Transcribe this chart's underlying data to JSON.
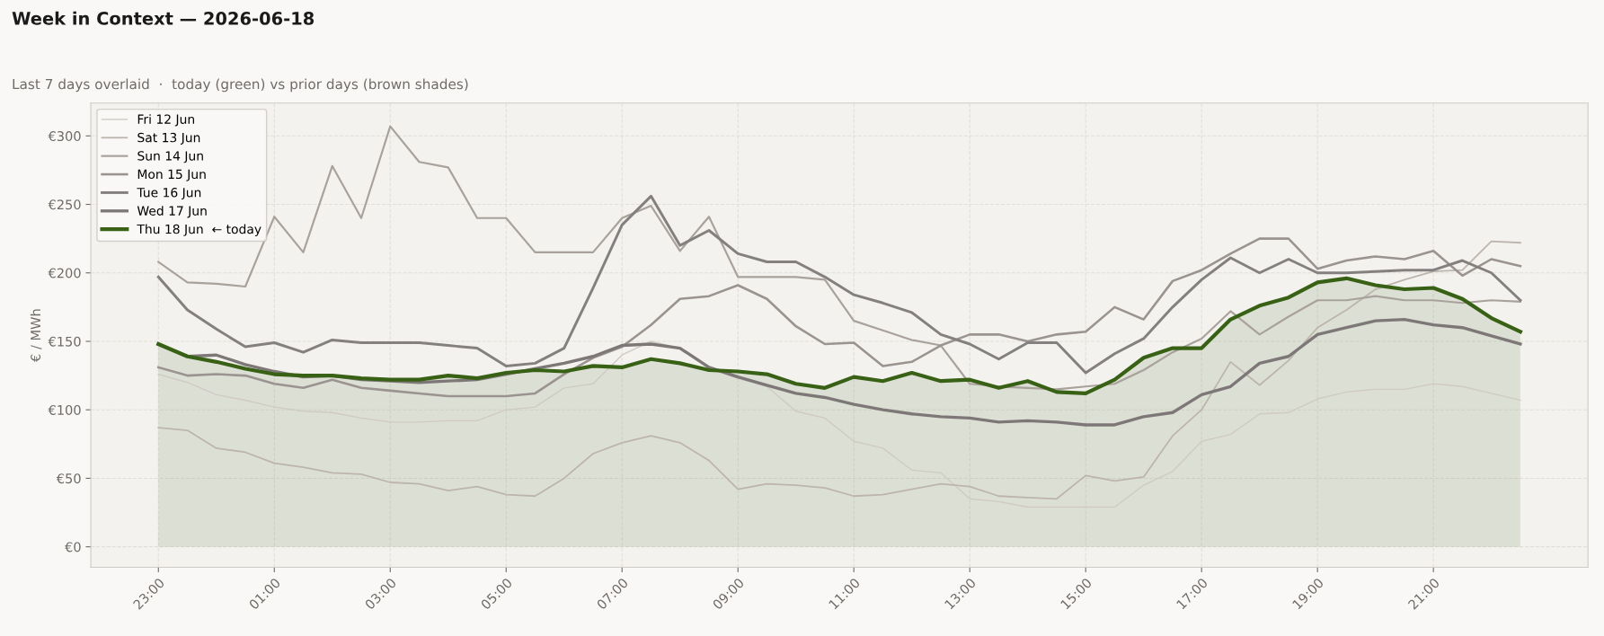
{
  "chart_data": {
    "type": "line",
    "title": "Week in Context — 2026-06-18",
    "subtitle": "Last 7 days overlaid  ·  today (green) vs prior days (brown shades)",
    "ylabel": "€ / MWh",
    "x": [
      "2026-06-17T23:00",
      "2026-06-17T23:30",
      "2026-06-18T00:00",
      "2026-06-18T00:30",
      "2026-06-18T01:00",
      "2026-06-18T01:30",
      "2026-06-18T02:00",
      "2026-06-18T02:30",
      "2026-06-18T03:00",
      "2026-06-18T03:30",
      "2026-06-18T04:00",
      "2026-06-18T04:30",
      "2026-06-18T05:00",
      "2026-06-18T05:30",
      "2026-06-18T06:00",
      "2026-06-18T06:30",
      "2026-06-18T07:00",
      "2026-06-18T07:30",
      "2026-06-18T08:00",
      "2026-06-18T08:30",
      "2026-06-18T09:00",
      "2026-06-18T09:30",
      "2026-06-18T10:00",
      "2026-06-18T10:30",
      "2026-06-18T11:00",
      "2026-06-18T11:30",
      "2026-06-18T12:00",
      "2026-06-18T12:30",
      "2026-06-18T13:00",
      "2026-06-18T13:30",
      "2026-06-18T14:00",
      "2026-06-18T14:30",
      "2026-06-18T15:00",
      "2026-06-18T15:30",
      "2026-06-18T16:00",
      "2026-06-18T16:30",
      "2026-06-18T17:00",
      "2026-06-18T17:30",
      "2026-06-18T18:00",
      "2026-06-18T18:30",
      "2026-06-18T19:00",
      "2026-06-18T19:30",
      "2026-06-18T20:00",
      "2026-06-18T20:30",
      "2026-06-18T21:00",
      "2026-06-18T21:30",
      "2026-06-18T22:00",
      "2026-06-18T22:30"
    ],
    "xlim": [
      "2026-06-17T21:50",
      "2026-06-18T23:40"
    ],
    "ylim": [
      -15,
      324
    ],
    "xticks": [
      {
        "value": "2026-06-17T23:00",
        "label": "23:00"
      },
      {
        "value": "2026-06-18T01:00",
        "label": "01:00"
      },
      {
        "value": "2026-06-18T03:00",
        "label": "03:00"
      },
      {
        "value": "2026-06-18T05:00",
        "label": "05:00"
      },
      {
        "value": "2026-06-18T07:00",
        "label": "07:00"
      },
      {
        "value": "2026-06-18T09:00",
        "label": "09:00"
      },
      {
        "value": "2026-06-18T11:00",
        "label": "11:00"
      },
      {
        "value": "2026-06-18T13:00",
        "label": "13:00"
      },
      {
        "value": "2026-06-18T15:00",
        "label": "15:00"
      },
      {
        "value": "2026-06-18T17:00",
        "label": "17:00"
      },
      {
        "value": "2026-06-18T19:00",
        "label": "19:00"
      },
      {
        "value": "2026-06-18T21:00",
        "label": "21:00"
      }
    ],
    "yticks": [
      {
        "value": 0,
        "label": "€0"
      },
      {
        "value": 50,
        "label": "€50"
      },
      {
        "value": 100,
        "label": "€100"
      },
      {
        "value": 150,
        "label": "€150"
      },
      {
        "value": 200,
        "label": "€200"
      },
      {
        "value": 250,
        "label": "€250"
      },
      {
        "value": 300,
        "label": "€300"
      }
    ],
    "grid": true,
    "legend": "top left",
    "series": [
      {
        "name": "Fri 12 Jun",
        "color": "#cfcac4",
        "values": [
          126,
          120,
          111,
          107,
          102,
          99,
          98,
          94,
          91,
          91,
          92,
          92,
          100,
          102,
          116,
          119,
          140,
          150,
          145,
          130,
          123,
          117,
          99,
          94,
          77,
          72,
          56,
          54,
          35,
          33,
          29,
          29,
          29,
          29,
          45,
          55,
          77,
          82,
          97,
          98,
          108,
          113,
          115,
          115,
          119,
          117,
          112,
          107
        ]
      },
      {
        "name": "Sat 13 Jun",
        "color": "#bdb5ad",
        "values": [
          87,
          85,
          72,
          69,
          61,
          58,
          54,
          53,
          47,
          46,
          41,
          44,
          38,
          37,
          50,
          68,
          76,
          81,
          76,
          63,
          42,
          46,
          45,
          43,
          37,
          38,
          42,
          46,
          44,
          37,
          36,
          35,
          52,
          48,
          51,
          81,
          100,
          135,
          118,
          136,
          160,
          173,
          188,
          195,
          201,
          202,
          223,
          222
        ]
      },
      {
        "name": "Sun 14 Jun",
        "color": "#a9a19b",
        "values": [
          208,
          193,
          192,
          190,
          241,
          215,
          278,
          240,
          307,
          281,
          277,
          240,
          240,
          215,
          215,
          215,
          240,
          249,
          216,
          241,
          197,
          197,
          197,
          195,
          165,
          158,
          151,
          147,
          119,
          117,
          116,
          115,
          117,
          119,
          129,
          142,
          152,
          172,
          155,
          168,
          180,
          180,
          183,
          180,
          180,
          178,
          180,
          179
        ]
      },
      {
        "name": "Mon 15 Jun",
        "color": "#9b9390",
        "values": [
          131,
          125,
          126,
          125,
          119,
          116,
          122,
          116,
          114,
          112,
          110,
          110,
          110,
          112,
          126,
          138,
          146,
          162,
          181,
          183,
          191,
          181,
          161,
          148,
          149,
          132,
          135,
          147,
          155,
          155,
          150,
          155,
          157,
          175,
          166,
          194,
          202,
          214,
          225,
          225,
          203,
          209,
          212,
          210,
          216,
          198,
          210,
          205
        ]
      },
      {
        "name": "Tue 16 Jun",
        "color": "#858080",
        "values": [
          197,
          173,
          159,
          146,
          149,
          142,
          151,
          149,
          149,
          149,
          147,
          145,
          132,
          134,
          145,
          189,
          235,
          256,
          220,
          231,
          214,
          208,
          208,
          197,
          184,
          178,
          171,
          155,
          148,
          137,
          149,
          149,
          127,
          141,
          152,
          175,
          195,
          211,
          200,
          210,
          200,
          200,
          201,
          202,
          202,
          209,
          200,
          180
        ]
      },
      {
        "name": "Wed 17 Jun",
        "color": "#7d7877",
        "values": [
          148,
          139,
          140,
          133,
          128,
          124,
          125,
          122,
          121,
          120,
          121,
          122,
          126,
          130,
          134,
          139,
          147,
          148,
          145,
          131,
          124,
          118,
          112,
          109,
          104,
          100,
          97,
          95,
          94,
          91,
          92,
          91,
          89,
          89,
          95,
          98,
          111,
          117,
          134,
          139,
          155,
          160,
          165,
          166,
          162,
          160,
          154,
          148
        ]
      },
      {
        "name": "Thu 18 Jun  ← today",
        "color": "#386116",
        "type": "area",
        "values": [
          148,
          139,
          135,
          130,
          126,
          125,
          125,
          123,
          122,
          122,
          125,
          123,
          127,
          129,
          128,
          132,
          131,
          137,
          134,
          129,
          128,
          126,
          119,
          116,
          124,
          121,
          127,
          121,
          122,
          116,
          121,
          113,
          112,
          122,
          138,
          145,
          145,
          166,
          176,
          182,
          193,
          196,
          191,
          188,
          189,
          181,
          167,
          157
        ]
      }
    ]
  }
}
